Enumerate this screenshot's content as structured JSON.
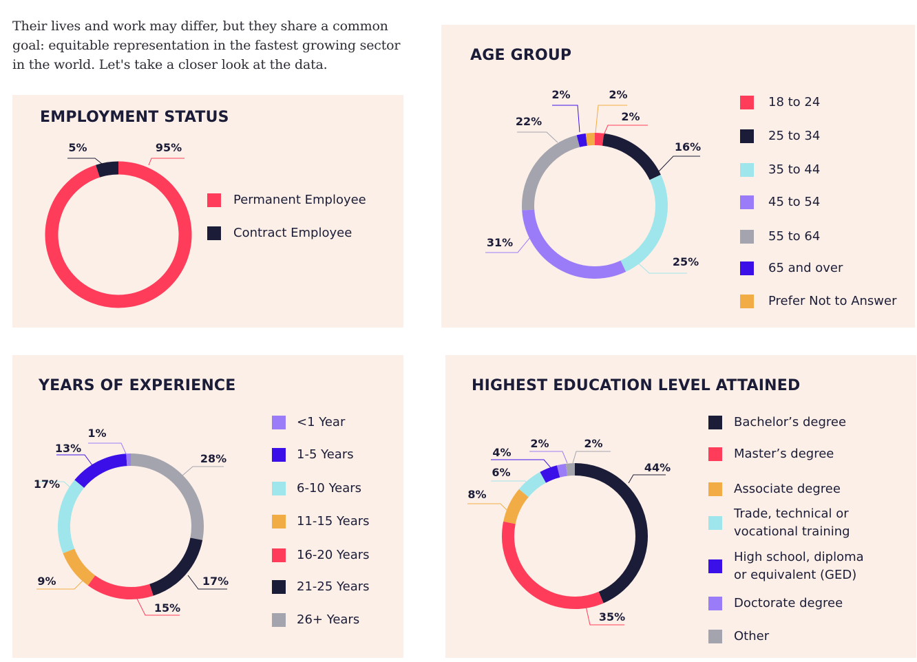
{
  "intro_text": "Their lives and work may differ, but they share a common goal: equitable representation in the fastest growing sector in the world. Let's take a closer look at the data.",
  "colors": {
    "panel_bg": "#fcefe7",
    "red": "#ff3c5a",
    "navy": "#1b1c37",
    "cyan": "#9fe6ec",
    "lavender": "#9a7cf8",
    "gray": "#a3a4ad",
    "blue": "#3b10e8",
    "orange": "#f2ac45"
  },
  "chart_data": [
    {
      "type": "pie",
      "title": "EMPLOYMENT STATUS",
      "legend_position": "right",
      "series": [
        {
          "name": "Permanent Employee",
          "value": 95,
          "label": "95%",
          "color": "#ff3c5a"
        },
        {
          "name": "Contract Employee",
          "value": 5,
          "label": "5%",
          "color": "#1b1c37"
        }
      ]
    },
    {
      "type": "pie",
      "title": "AGE GROUP",
      "legend_position": "right",
      "series": [
        {
          "name": "18 to 24",
          "value": 2,
          "label": "2%",
          "color": "#ff3c5a"
        },
        {
          "name": "25 to 34",
          "value": 16,
          "label": "16%",
          "color": "#1b1c37"
        },
        {
          "name": "35 to 44",
          "value": 25,
          "label": "25%",
          "color": "#9fe6ec"
        },
        {
          "name": "45 to 54",
          "value": 31,
          "label": "31%",
          "color": "#9a7cf8"
        },
        {
          "name": "55 to 64",
          "value": 22,
          "label": "22%",
          "color": "#a3a4ad"
        },
        {
          "name": "65 and over",
          "value": 2,
          "label": "2%",
          "color": "#3b10e8"
        },
        {
          "name": "Prefer Not to Answer",
          "value": 2,
          "label": "2%",
          "color": "#f2ac45"
        }
      ]
    },
    {
      "type": "pie",
      "title": "YEARS OF EXPERIENCE",
      "legend_position": "right",
      "series": [
        {
          "name": "26+ Years",
          "value": 28,
          "label": "28%",
          "color": "#a3a4ad"
        },
        {
          "name": "21-25 Years",
          "value": 17,
          "label": "17%",
          "color": "#1b1c37"
        },
        {
          "name": "16-20 Years",
          "value": 15,
          "label": "15%",
          "color": "#ff3c5a"
        },
        {
          "name": "11-15 Years",
          "value": 9,
          "label": "9%",
          "color": "#f2ac45"
        },
        {
          "name": "6-10 Years",
          "value": 17,
          "label": "17%",
          "color": "#9fe6ec"
        },
        {
          "name": "1-5 Years",
          "value": 13,
          "label": "13%",
          "color": "#3b10e8"
        },
        {
          "name": "<1 Year",
          "value": 1,
          "label": "1%",
          "color": "#9a7cf8"
        }
      ],
      "legend_order": [
        "<1 Year",
        "1-5 Years",
        "6-10 Years",
        "11-15 Years",
        "16-20 Years",
        "21-25 Years",
        "26+ Years"
      ]
    },
    {
      "type": "pie",
      "title": "HIGHEST EDUCATION LEVEL ATTAINED",
      "legend_position": "right",
      "series": [
        {
          "name": "Bachelor’s degree",
          "value": 44,
          "label": "44%",
          "color": "#1b1c37"
        },
        {
          "name": "Master’s degree",
          "value": 35,
          "label": "35%",
          "color": "#ff3c5a"
        },
        {
          "name": "Associate degree",
          "value": 8,
          "label": "8%",
          "color": "#f2ac45"
        },
        {
          "name": "Trade, technical or vocational training",
          "value": 6,
          "label": "6%",
          "color": "#9fe6ec"
        },
        {
          "name": "High school, diploma or equivalent (GED)",
          "value": 4,
          "label": "4%",
          "color": "#3b10e8"
        },
        {
          "name": "Doctorate degree",
          "value": 2,
          "label": "2%",
          "color": "#9a7cf8"
        },
        {
          "name": "Other",
          "value": 2,
          "label": "2%",
          "color": "#a3a4ad"
        }
      ],
      "legend_lines": [
        [
          "Bachelor’s degree"
        ],
        [
          "Master’s degree"
        ],
        [
          "Associate degree"
        ],
        [
          "Trade, technical or",
          "vocational training"
        ],
        [
          "High school, diploma",
          "or equivalent (GED)"
        ],
        [
          "Doctorate degree"
        ],
        [
          "Other"
        ]
      ]
    }
  ]
}
